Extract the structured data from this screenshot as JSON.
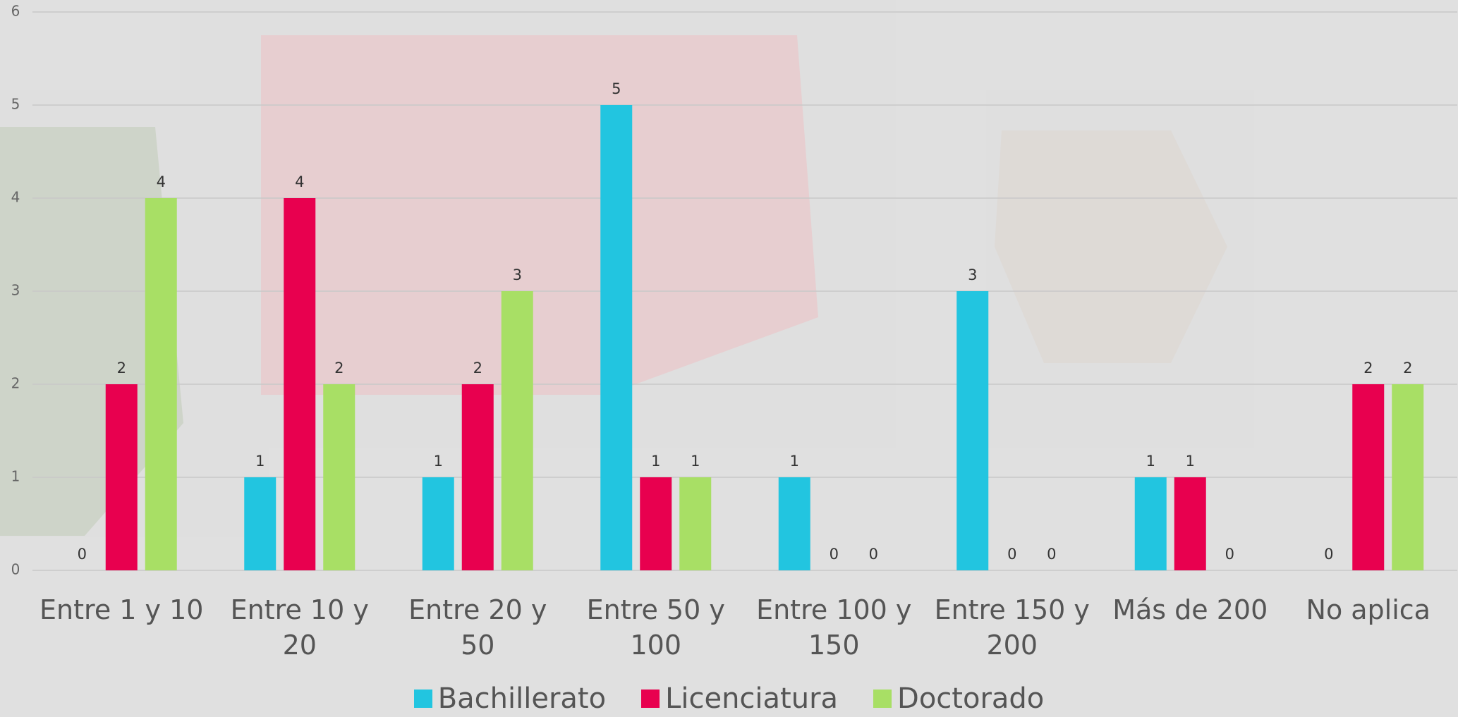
{
  "chart_data": {
    "type": "bar",
    "categories": [
      "Entre 1 y 10",
      "Entre 10 y 20",
      "Entre 20 y 50",
      "Entre 50 y 100",
      "Entre 100 y 150",
      "Entre 150 y 200",
      "Más de 200",
      "No aplica"
    ],
    "series": [
      {
        "name": "Bachillerato",
        "color": "#22c5e0",
        "values": [
          0,
          1,
          1,
          5,
          1,
          3,
          1,
          0
        ]
      },
      {
        "name": "Licenciatura",
        "color": "#e8004f",
        "values": [
          2,
          4,
          2,
          1,
          0,
          0,
          1,
          2
        ]
      },
      {
        "name": "Doctorado",
        "color": "#a8df65",
        "values": [
          4,
          2,
          3,
          1,
          0,
          0,
          0,
          2
        ]
      }
    ],
    "ylim": [
      0,
      6
    ],
    "yticks": [
      0,
      1,
      2,
      3,
      4,
      5,
      6
    ],
    "grid": true,
    "legend": "bottom"
  }
}
